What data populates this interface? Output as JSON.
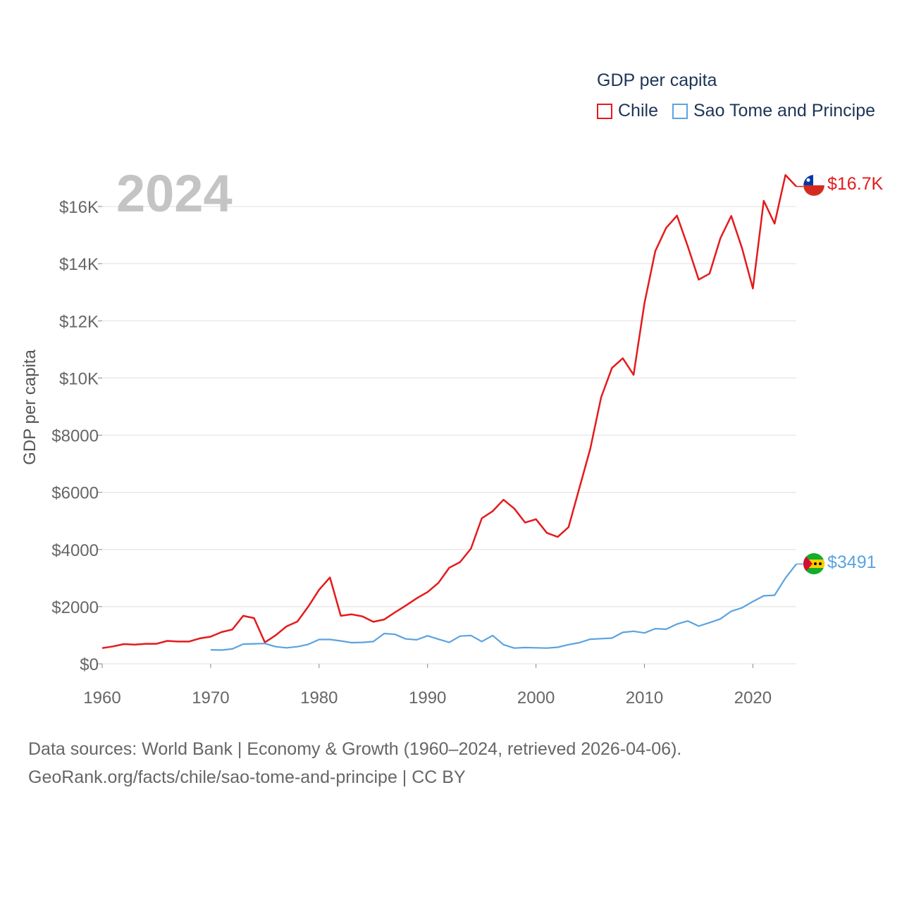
{
  "chart_data": {
    "type": "line",
    "title": "GDP per capita",
    "ylabel": "GDP per capita",
    "xlabel": "",
    "year_label": "2024",
    "xlim": [
      1960,
      2024
    ],
    "ylim": [
      0,
      17000
    ],
    "x_ticks": [
      "1960",
      "1970",
      "1980",
      "1990",
      "2000",
      "2010",
      "2020"
    ],
    "y_ticks": [
      {
        "value": 0,
        "label": "$0"
      },
      {
        "value": 2000,
        "label": "$2000"
      },
      {
        "value": 4000,
        "label": "$4000"
      },
      {
        "value": 6000,
        "label": "$6000"
      },
      {
        "value": 8000,
        "label": "$8000"
      },
      {
        "value": 10000,
        "label": "$10K"
      },
      {
        "value": 12000,
        "label": "$12K"
      },
      {
        "value": 14000,
        "label": "$14K"
      },
      {
        "value": 16000,
        "label": "$16K"
      }
    ],
    "series": [
      {
        "name": "Chile",
        "color": "#e41a1c",
        "end_label": "$16.7K",
        "x": [
          1960,
          1961,
          1962,
          1963,
          1964,
          1965,
          1966,
          1967,
          1968,
          1969,
          1970,
          1971,
          1972,
          1973,
          1974,
          1975,
          1976,
          1977,
          1978,
          1979,
          1980,
          1981,
          1982,
          1983,
          1984,
          1985,
          1986,
          1987,
          1988,
          1989,
          1990,
          1991,
          1992,
          1993,
          1994,
          1995,
          1996,
          1997,
          1998,
          1999,
          2000,
          2001,
          2002,
          2003,
          2004,
          2005,
          2006,
          2007,
          2008,
          2009,
          2010,
          2011,
          2012,
          2013,
          2014,
          2015,
          2016,
          2017,
          2018,
          2019,
          2020,
          2021,
          2022,
          2023,
          2024
        ],
        "values": [
          550,
          610,
          690,
          670,
          700,
          700,
          800,
          780,
          780,
          890,
          950,
          1110,
          1200,
          1680,
          1600,
          750,
          1000,
          1310,
          1480,
          2000,
          2590,
          3020,
          1680,
          1730,
          1660,
          1470,
          1550,
          1800,
          2040,
          2290,
          2510,
          2830,
          3360,
          3560,
          4030,
          5090,
          5340,
          5740,
          5430,
          4940,
          5060,
          4580,
          4440,
          4780,
          6150,
          7520,
          9320,
          10350,
          10690,
          10110,
          12610,
          14440,
          15250,
          15680,
          14600,
          13440,
          13650,
          14890,
          15670,
          14540,
          13130,
          16200,
          15400,
          17100,
          16700
        ]
      },
      {
        "name": "Sao Tome and Principe",
        "color": "#5ba3e0",
        "end_label": "$3491",
        "x": [
          1970,
          1971,
          1972,
          1973,
          1974,
          1975,
          1976,
          1977,
          1978,
          1979,
          1980,
          1981,
          1982,
          1983,
          1984,
          1985,
          1986,
          1987,
          1988,
          1989,
          1990,
          1991,
          1992,
          1993,
          1994,
          1995,
          1996,
          1997,
          1998,
          1999,
          2000,
          2001,
          2002,
          2003,
          2004,
          2005,
          2006,
          2007,
          2008,
          2009,
          2010,
          2011,
          2012,
          2013,
          2014,
          2015,
          2016,
          2017,
          2018,
          2019,
          2020,
          2021,
          2022,
          2023,
          2024
        ],
        "values": [
          490,
          480,
          520,
          690,
          700,
          710,
          600,
          560,
          600,
          680,
          850,
          850,
          800,
          740,
          750,
          780,
          1060,
          1030,
          870,
          840,
          980,
          860,
          750,
          970,
          990,
          780,
          990,
          670,
          550,
          570,
          560,
          550,
          580,
          670,
          740,
          860,
          880,
          900,
          1100,
          1140,
          1080,
          1230,
          1210,
          1390,
          1500,
          1320,
          1440,
          1570,
          1840,
          1960,
          2180,
          2380,
          2400,
          3000,
          3491
        ]
      }
    ]
  },
  "legend": {
    "title": "GDP per capita",
    "items": [
      "Chile",
      "Sao Tome and Principe"
    ]
  },
  "footer": {
    "line1": "Data sources: World Bank | Economy & Growth (1960–2024, retrieved 2026-04-06).",
    "line2": "GeoRank.org/facts/chile/sao-tome-and-principe | CC BY"
  }
}
